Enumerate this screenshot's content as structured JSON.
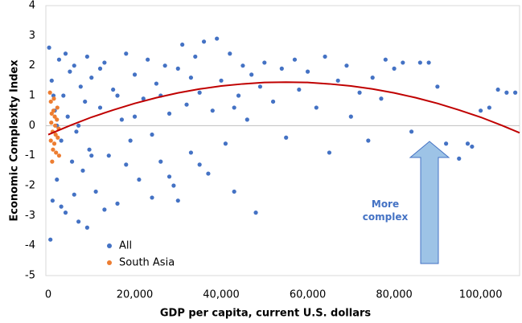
{
  "chart_data": {
    "type": "scatter",
    "xlabel": "GDP per capita, current U.S. dollars",
    "ylabel": "Economic Complexity Index",
    "annotation": "More complex",
    "xlim": [
      0,
      109000
    ],
    "ylim": [
      -5,
      4
    ],
    "xticks": [
      0,
      {
        "value": 20000,
        "label": "20,000"
      },
      {
        "value": 40000,
        "label": "40,000"
      },
      {
        "value": 60000,
        "label": "60,000"
      },
      {
        "value": 80000,
        "label": "80,000"
      },
      {
        "value": 100000,
        "label": "100,000"
      }
    ],
    "yticks": [
      4,
      3,
      2,
      1,
      0,
      -1,
      -2,
      -3,
      -4,
      -5
    ],
    "legend": "lower left",
    "series": [
      {
        "name": "All",
        "color": "#4472c4",
        "x": [
          200,
          500,
          800,
          1000,
          1500,
          2000,
          2500,
          3000,
          3500,
          4000,
          4500,
          5000,
          5500,
          6000,
          6500,
          7000,
          7500,
          8000,
          8500,
          9000,
          9500,
          10000,
          11000,
          12000,
          13000,
          14000,
          15000,
          16000,
          17000,
          18000,
          19000,
          20000,
          21000,
          22000,
          23000,
          24000,
          25000,
          26000,
          27000,
          28000,
          29000,
          30000,
          31000,
          32000,
          33000,
          34000,
          35000,
          36000,
          37000,
          38000,
          39000,
          40000,
          41000,
          42000,
          43000,
          44000,
          45000,
          46000,
          47000,
          48000,
          49000,
          50000,
          52000,
          54000,
          55000,
          57000,
          58000,
          60000,
          62000,
          64000,
          65000,
          67000,
          69000,
          70000,
          72000,
          74000,
          75000,
          77000,
          78000,
          80000,
          82000,
          84000,
          86000,
          88000,
          90000,
          92000,
          95000,
          97000,
          100000,
          102000,
          104000,
          106000,
          108000,
          98000,
          35000,
          30000,
          28000,
          24000,
          18000,
          13000,
          9000,
          6000,
          3000,
          2000,
          1200,
          4000,
          7000,
          10000,
          12000,
          16000,
          20000,
          26000,
          33000,
          43000
        ],
        "values": [
          2.6,
          -3.8,
          1.5,
          -2.5,
          0.5,
          -1.8,
          2.2,
          -0.5,
          1.0,
          -2.9,
          0.3,
          1.8,
          -1.2,
          2.0,
          -0.2,
          -3.2,
          1.3,
          -1.5,
          0.8,
          2.3,
          -0.8,
          1.6,
          -2.2,
          0.6,
          2.1,
          -1.0,
          1.2,
          -2.6,
          0.2,
          2.4,
          -0.5,
          1.7,
          -1.8,
          0.9,
          2.2,
          -0.3,
          1.4,
          -1.2,
          2.0,
          0.4,
          -2.0,
          1.9,
          2.7,
          0.7,
          -0.9,
          2.3,
          1.1,
          2.8,
          -1.6,
          0.5,
          2.9,
          1.5,
          -0.6,
          2.4,
          -2.2,
          1.0,
          2.0,
          0.2,
          1.7,
          -2.9,
          1.3,
          2.1,
          0.8,
          1.9,
          -0.4,
          2.2,
          1.2,
          1.8,
          0.6,
          2.3,
          -0.9,
          1.5,
          2.0,
          0.3,
          1.1,
          -0.5,
          1.6,
          0.9,
          2.2,
          1.9,
          2.1,
          -0.2,
          2.1,
          2.1,
          1.3,
          -0.6,
          -1.1,
          -0.6,
          0.5,
          0.6,
          1.2,
          1.1,
          1.1,
          -0.7,
          -1.3,
          -2.5,
          -1.7,
          -2.4,
          -1.3,
          -2.8,
          -3.4,
          -2.3,
          -2.7,
          0.0,
          1.0,
          2.4,
          0.0,
          -1.0,
          1.9,
          1.0,
          0.3,
          1.0,
          1.6,
          0.6
        ]
      },
      {
        "name": "South Asia",
        "color": "#ed7d31",
        "x": [
          400,
          600,
          800,
          1000,
          1200,
          1400,
          1600,
          1800,
          2000,
          2200,
          2500,
          600,
          900,
          1300,
          1700,
          2100,
          700,
          1100,
          1500,
          2400
        ],
        "values": [
          1.1,
          0.8,
          0.4,
          -0.2,
          0.5,
          -0.6,
          0.0,
          -0.9,
          0.2,
          -0.4,
          -1.0,
          -0.5,
          -1.2,
          0.9,
          -0.3,
          0.6,
          0.1,
          -0.8,
          0.3,
          -0.1
        ]
      }
    ],
    "trend": {
      "color": "#c00000",
      "x": [
        0,
        5000,
        10000,
        15000,
        20000,
        25000,
        30000,
        35000,
        40000,
        45000,
        50000,
        55000,
        60000,
        65000,
        70000,
        75000,
        80000,
        85000,
        90000,
        95000,
        100000,
        105000,
        109000
      ],
      "values": [
        -0.3,
        0.0,
        0.28,
        0.52,
        0.74,
        0.93,
        1.09,
        1.22,
        1.32,
        1.39,
        1.44,
        1.45,
        1.44,
        1.39,
        1.32,
        1.22,
        1.09,
        0.93,
        0.74,
        0.52,
        0.28,
        0.0,
        -0.24
      ]
    }
  }
}
